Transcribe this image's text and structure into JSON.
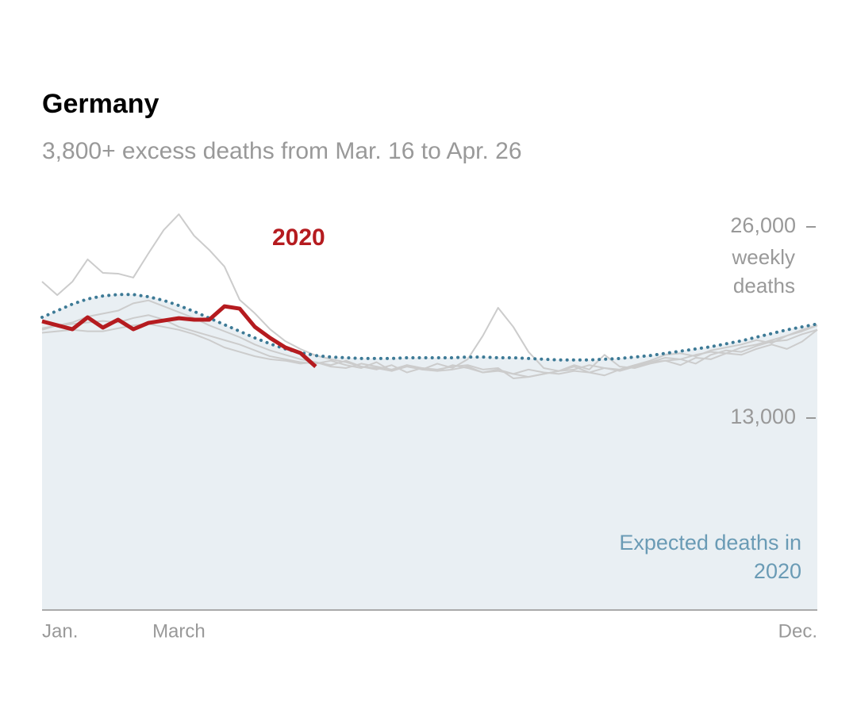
{
  "chart_data": {
    "type": "line",
    "title": "Germany",
    "subtitle": "3,800+ excess deaths from Mar. 16 to Apr. 26",
    "y_axis_label": "weekly deaths",
    "x": [
      1,
      2,
      3,
      4,
      5,
      6,
      7,
      8,
      9,
      10,
      11,
      12,
      13,
      14,
      15,
      16,
      17,
      18,
      19,
      20,
      21,
      22,
      23,
      24,
      25,
      26,
      27,
      28,
      29,
      30,
      31,
      32,
      33,
      34,
      35,
      36,
      37,
      38,
      39,
      40,
      41,
      42,
      43,
      44,
      45,
      46,
      47,
      48,
      49,
      50,
      51,
      52
    ],
    "xlim": [
      1,
      52
    ],
    "xticks": [
      {
        "value": 1,
        "label": "Jan."
      },
      {
        "value": 10,
        "label": "March"
      },
      {
        "value": 52,
        "label": "Dec."
      }
    ],
    "ylim": [
      0,
      26000
    ],
    "yticks": [
      {
        "value": 13000,
        "label": "13,000"
      },
      {
        "value": 26000,
        "label": "26,000"
      }
    ],
    "series": [
      {
        "color": "#cccccc",
        "values": [
          22280,
          21360,
          22280,
          23790,
          22870,
          22820,
          22550,
          24200,
          25780,
          26860,
          25400,
          24430,
          23300,
          21040,
          20120,
          19040,
          18230,
          17690,
          17260,
          17000,
          16800,
          16500,
          16300,
          16600,
          16100,
          16400,
          16200,
          16300,
          16500,
          16100,
          16200,
          16000,
          16300,
          16100,
          16000,
          16200,
          16100,
          16400,
          16300,
          16600,
          16800,
          17100,
          17000,
          17300,
          17500,
          17400,
          17800,
          18000,
          18300,
          18600,
          18900,
          19300
        ]
      },
      {
        "color": "#cccccc",
        "values": [
          19000,
          19300,
          19500,
          19900,
          20100,
          20300,
          20800,
          21000,
          20600,
          20200,
          19800,
          19300,
          18900,
          18500,
          18000,
          17600,
          17300,
          17000,
          16800,
          16600,
          16900,
          16500,
          16400,
          16200,
          16600,
          16300,
          16700,
          16400,
          17000,
          18600,
          20500,
          19200,
          17500,
          16400,
          16200,
          16500,
          16100,
          15900,
          16300,
          16600,
          16900,
          17300,
          17400,
          17200,
          17600,
          17800,
          18000,
          18300,
          18100,
          18600,
          19000,
          19300
        ]
      },
      {
        "color": "#cccccc",
        "values": [
          19100,
          19300,
          19400,
          19500,
          19600,
          19500,
          19800,
          20000,
          19700,
          19200,
          18900,
          18600,
          18300,
          18000,
          17600,
          17200,
          17000,
          16800,
          16700,
          16900,
          16600,
          16400,
          16800,
          16200,
          16500,
          16300,
          16200,
          16600,
          16400,
          16100,
          16300,
          16000,
          15800,
          16000,
          16200,
          16300,
          16600,
          16400,
          16200,
          16500,
          16800,
          16900,
          17000,
          16700,
          17300,
          17600,
          17500,
          17900,
          18200,
          18300,
          18700,
          19000
        ]
      },
      {
        "color": "#cccccc",
        "values": [
          18800,
          18900,
          19000,
          18900,
          18900,
          19100,
          19300,
          19400,
          19200,
          19000,
          18700,
          18300,
          17800,
          17500,
          17200,
          17000,
          16900,
          16700,
          16800,
          16500,
          16400,
          16700,
          16500,
          16300,
          16600,
          16400,
          16300,
          16500,
          16600,
          16300,
          16400,
          15700,
          15800,
          16000,
          16200,
          16600,
          16300,
          17300,
          16500,
          16400,
          16700,
          16900,
          16600,
          17100,
          17000,
          17400,
          17300,
          17700,
          18000,
          17700,
          18200,
          19000
        ]
      },
      {
        "name": "Expected deaths in 2020",
        "color": "#3d7a96",
        "fill": "#e9eff3",
        "values": [
          19850,
          20300,
          20750,
          21100,
          21300,
          21400,
          21400,
          21250,
          21000,
          20650,
          20250,
          19800,
          19350,
          18900,
          18450,
          18050,
          17700,
          17450,
          17250,
          17150,
          17100,
          17050,
          17050,
          17050,
          17100,
          17100,
          17100,
          17100,
          17150,
          17150,
          17100,
          17100,
          17050,
          17000,
          16950,
          16950,
          16950,
          17000,
          17050,
          17150,
          17250,
          17400,
          17550,
          17700,
          17850,
          18050,
          18250,
          18500,
          18750,
          19000,
          19200,
          19400
        ]
      },
      {
        "name": "2020",
        "color": "#b51b1f",
        "values": [
          19580,
          19310,
          19040,
          19850,
          19150,
          19690,
          19040,
          19470,
          19630,
          19790,
          19690,
          19690,
          20600,
          20440,
          19200,
          18450,
          17800,
          17420,
          16500,
          null,
          null,
          null,
          null,
          null,
          null,
          null,
          null,
          null,
          null,
          null,
          null,
          null,
          null,
          null,
          null,
          null,
          null,
          null,
          null,
          null,
          null,
          null,
          null,
          null,
          null,
          null,
          null,
          null,
          null,
          null,
          null,
          null
        ]
      }
    ]
  }
}
